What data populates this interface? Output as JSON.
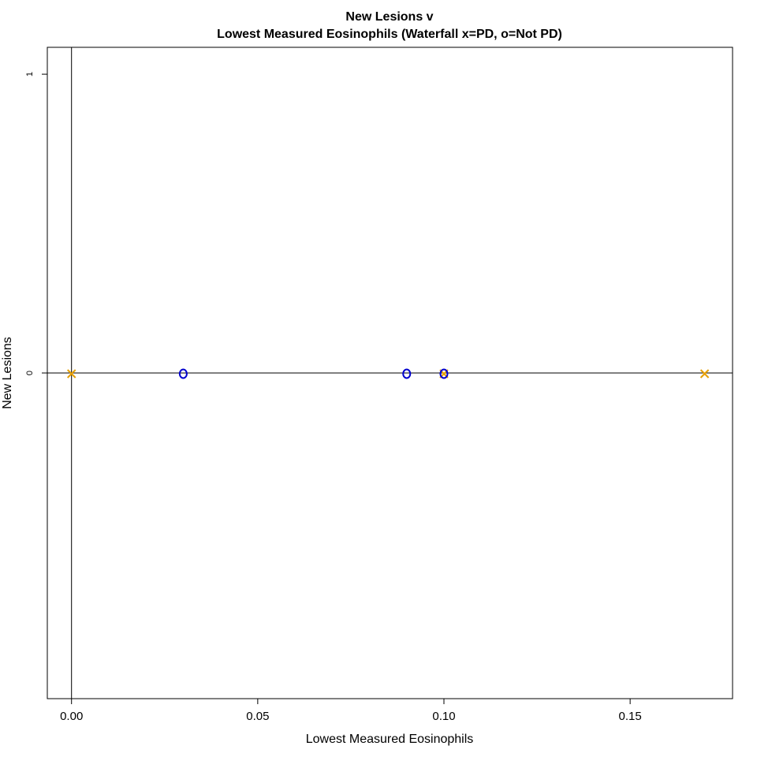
{
  "chart_data": {
    "type": "scatter",
    "title_line1": "New Lesions v",
    "title_line2": "Lowest Measured Eosinophils (Waterfall x=PD, o=Not PD)",
    "xlabel": "Lowest Measured Eosinophils",
    "ylabel": "New Lesions",
    "xlim": [
      -0.0065,
      0.1775
    ],
    "ylim": [
      -1.09,
      1.09
    ],
    "x_ticks": [
      {
        "value": 0.0,
        "label": "0.00"
      },
      {
        "value": 0.05,
        "label": "0.05"
      },
      {
        "value": 0.1,
        "label": "0.10"
      },
      {
        "value": 0.15,
        "label": "0.15"
      }
    ],
    "y_ticks": [
      {
        "value": 0,
        "label": "0"
      },
      {
        "value": 1,
        "label": "1"
      }
    ],
    "reference_lines": {
      "x": 0,
      "y": 0
    },
    "series": [
      {
        "name": "PD",
        "marker": "x",
        "color": "#E69F00",
        "points": [
          {
            "x": 0.0,
            "y": 0
          },
          {
            "x": 0.1,
            "y": 0
          },
          {
            "x": 0.17,
            "y": 0
          }
        ]
      },
      {
        "name": "Not PD",
        "marker": "o",
        "color": "#0000CD",
        "points": [
          {
            "x": 0.03,
            "y": 0
          },
          {
            "x": 0.09,
            "y": 0
          },
          {
            "x": 0.1,
            "y": 0
          }
        ]
      }
    ]
  }
}
